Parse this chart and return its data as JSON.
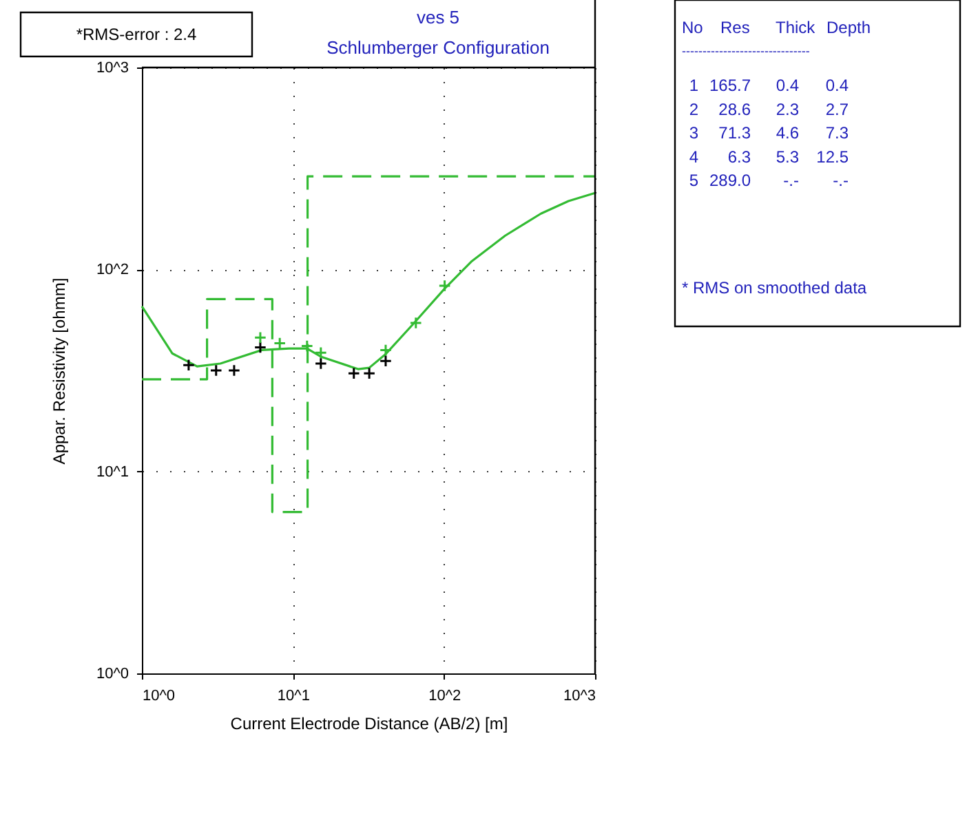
{
  "chart_data": {
    "type": "line",
    "title": "ves 5",
    "subtitle": "Schlumberger Configuration",
    "xlabel": "Current Electrode Distance (AB/2) [m]",
    "ylabel": "Appar. Resistivity [ohmm]",
    "annotations": [
      "*RMS-error :  2.4",
      "No    Res   Thick   Depth",
      "-------------------------------",
      " 1   165.7    0.4     0.4",
      " 2    28.6    2.3     2.7",
      " 3    71.3    4.6     7.3",
      " 4     6.3    5.3    12.5",
      " 5   289.0     -.-      -.-",
      "* RMS on smoothed data"
    ],
    "log": "xy",
    "xlim": [
      1,
      1000
    ],
    "ylim": [
      1,
      1000
    ],
    "xticks": [
      {
        "value": 1,
        "label": "10^0"
      },
      {
        "value": 10,
        "label": "10^1"
      },
      {
        "value": 100,
        "label": "10^2"
      },
      {
        "value": 1000,
        "label": "10^3"
      }
    ],
    "yticks": [
      {
        "value": 1,
        "label": "10^0"
      },
      {
        "value": 10,
        "label": "10^1"
      },
      {
        "value": 100,
        "label": "10^2"
      },
      {
        "value": 1000,
        "label": "10^3"
      }
    ],
    "grid": true,
    "series": [
      {
        "type": "step",
        "color": "#33bb33",
        "line_style": "dashed",
        "x": [
          1,
          2.7,
          7.3,
          12.5,
          1000
        ],
        "values": [
          28.6,
          71.3,
          6.3,
          289,
          289
        ]
      },
      {
        "color": "#33bb33",
        "line_style": "solid",
        "x": [
          1,
          1.59,
          2.32,
          3.31,
          6.21,
          9.4,
          12.4,
          15.3,
          27,
          32,
          41.1,
          62.4,
          101,
          153,
          254,
          438,
          667,
          1000
        ],
        "values": [
          65.7,
          38.4,
          33.1,
          34.2,
          39.9,
          40.6,
          40.6,
          37,
          32.1,
          32.6,
          38.1,
          53.6,
          80.4,
          110,
          147,
          189,
          218,
          239
        ]
      },
      {
        "type": "scatter",
        "color": "#000000",
        "marker": "cross",
        "x": [
          2.04,
          3.1,
          4.08,
          6.08,
          15.3,
          25.3,
          32,
          41.1
        ],
        "values": [
          33.6,
          31.6,
          31.6,
          41.1,
          34.2,
          30.6,
          30.6,
          35.2
        ]
      },
      {
        "type": "scatter",
        "color": "#33bb33",
        "marker": "cross",
        "x": [
          6.08,
          8.18,
          12.4,
          15.3,
          41.1,
          65.1,
          101
        ],
        "values": [
          46,
          43.1,
          41.8,
          38.7,
          39.9,
          54.4,
          83
        ]
      }
    ]
  }
}
